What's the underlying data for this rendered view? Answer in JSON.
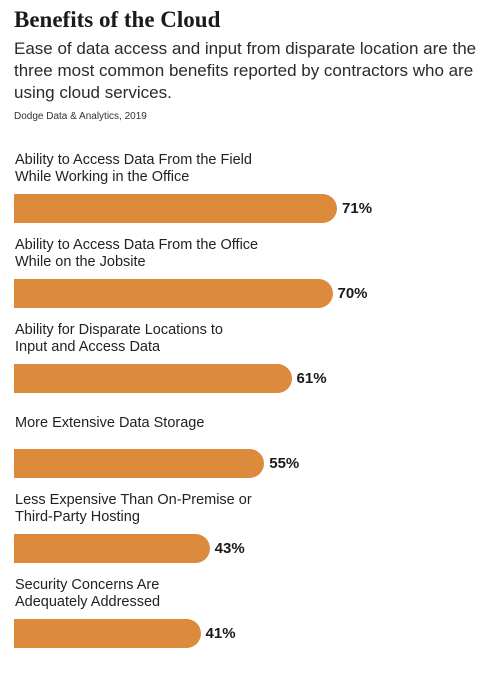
{
  "chart_data": {
    "type": "bar",
    "orientation": "horizontal",
    "title": "Benefits of the Cloud",
    "subtitle": "Ease of data access and input from disparate location are the three most common benefits reported by contractors who are using cloud services.",
    "source": "Dodge Data & Analytics, 2019",
    "categories": [
      "Ability to Access Data From the Field\nWhile Working in the Office",
      "Ability to Access Data From the Office\nWhile on the Jobsite",
      "Ability for Disparate Locations to\nInput and Access Data",
      "More Extensive Data Storage",
      "Less Expensive Than On-Premise or\nThird-Party Hosting",
      "Security Concerns Are\nAdequately Addressed"
    ],
    "values": [
      71,
      70,
      61,
      55,
      43,
      41
    ],
    "value_labels": [
      "71%",
      "70%",
      "61%",
      "55%",
      "43%",
      "41%"
    ],
    "unit": "%",
    "bar_color": "#dc8a3c",
    "grid": false,
    "legend": "none"
  }
}
